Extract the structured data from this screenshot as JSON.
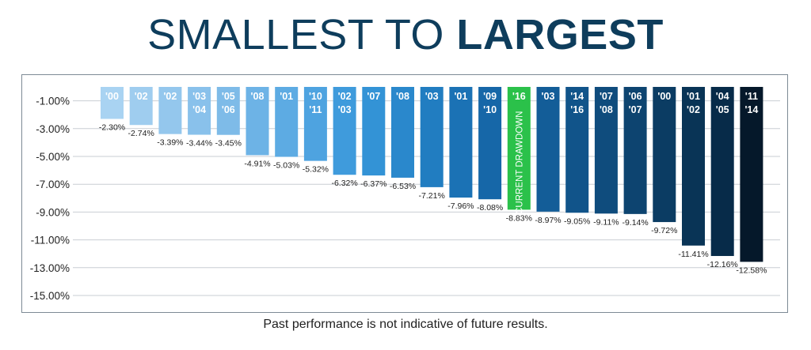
{
  "title": {
    "part1": "SMALLEST ",
    "part2": "TO ",
    "part3": "LARGEST"
  },
  "footer": "Past performance is not indicative of future results.",
  "chart_data": {
    "type": "bar",
    "y_ticks": [
      "-1.00%",
      "-3.00%",
      "-5.00%",
      "-7.00%",
      "-9.00%",
      "-11.00%",
      "-13.00%",
      "-15.00%"
    ],
    "ylim": [
      -15,
      0
    ],
    "grid": true,
    "bars": [
      {
        "labels": [
          "'00"
        ],
        "value": -2.3,
        "value_label": "-2.30%",
        "color": "#a9d3f2"
      },
      {
        "labels": [
          "'02"
        ],
        "value": -2.74,
        "value_label": "-2.74%",
        "color": "#9fcdef"
      },
      {
        "labels": [
          "'02"
        ],
        "value": -3.39,
        "value_label": "-3.39%",
        "color": "#94c7ed"
      },
      {
        "labels": [
          "'03",
          "'04"
        ],
        "value": -3.44,
        "value_label": "-3.44%",
        "color": "#89c1eb"
      },
      {
        "labels": [
          "'05",
          "'06"
        ],
        "value": -3.45,
        "value_label": "-3.45%",
        "color": "#7ebbe8"
      },
      {
        "labels": [
          "'08"
        ],
        "value": -4.91,
        "value_label": "-4.91%",
        "color": "#6db3e6"
      },
      {
        "labels": [
          "'01"
        ],
        "value": -5.03,
        "value_label": "-5.03%",
        "color": "#5dabe3"
      },
      {
        "labels": [
          "'10",
          "'11"
        ],
        "value": -5.32,
        "value_label": "-5.32%",
        "color": "#4ea3e0"
      },
      {
        "labels": [
          "'02",
          "'03"
        ],
        "value": -6.32,
        "value_label": "-6.32%",
        "color": "#3f9bdc"
      },
      {
        "labels": [
          "'07"
        ],
        "value": -6.37,
        "value_label": "-6.37%",
        "color": "#3393d6"
      },
      {
        "labels": [
          "'08"
        ],
        "value": -6.53,
        "value_label": "-6.53%",
        "color": "#2a88cc"
      },
      {
        "labels": [
          "'03"
        ],
        "value": -7.21,
        "value_label": "-7.21%",
        "color": "#217dc1"
      },
      {
        "labels": [
          "'01"
        ],
        "value": -7.96,
        "value_label": "-7.96%",
        "color": "#1b72b5"
      },
      {
        "labels": [
          "'09",
          "'10"
        ],
        "value": -8.08,
        "value_label": "-8.08%",
        "color": "#1667a8"
      },
      {
        "labels": [
          "'16"
        ],
        "value": -8.83,
        "value_label": "-8.83%",
        "color": "#2bc14a",
        "vertical_label": "CURRENT DRAWDOWN"
      },
      {
        "labels": [
          "'03"
        ],
        "value": -8.97,
        "value_label": "-8.97%",
        "color": "#135d98"
      },
      {
        "labels": [
          "'14",
          "'16"
        ],
        "value": -9.05,
        "value_label": "-9.05%",
        "color": "#11548a"
      },
      {
        "labels": [
          "'07",
          "'08"
        ],
        "value": -9.11,
        "value_label": "-9.11%",
        "color": "#0f4c7d"
      },
      {
        "labels": [
          "'06",
          "'07"
        ],
        "value": -9.14,
        "value_label": "-9.14%",
        "color": "#0d4470"
      },
      {
        "labels": [
          "'00"
        ],
        "value": -9.72,
        "value_label": "-9.72%",
        "color": "#0b3c63"
      },
      {
        "labels": [
          "'01",
          "'02"
        ],
        "value": -11.41,
        "value_label": "-11.41%",
        "color": "#093456"
      },
      {
        "labels": [
          "'04",
          "'05"
        ],
        "value": -12.16,
        "value_label": "-12.16%",
        "color": "#072b49"
      },
      {
        "labels": [
          "'11",
          "'14"
        ],
        "value": -12.58,
        "value_label": "-12.58%",
        "color": "#05182a"
      }
    ]
  }
}
